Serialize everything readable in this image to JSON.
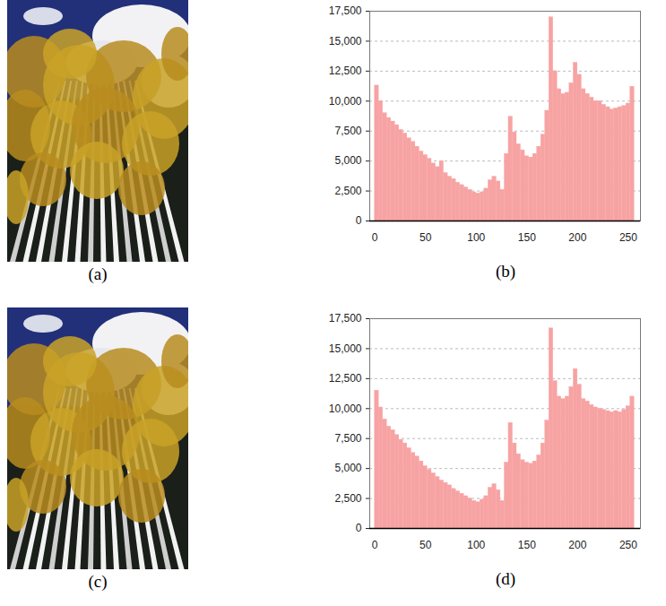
{
  "chart_data": [
    {
      "type": "histogram",
      "caption": "(b)",
      "color": "#f7a3a3",
      "grid": true,
      "bins": [
        0,
        4,
        8,
        12,
        16,
        20,
        24,
        28,
        32,
        36,
        40,
        44,
        48,
        52,
        56,
        60,
        64,
        68,
        72,
        76,
        80,
        84,
        88,
        92,
        96,
        100,
        104,
        108,
        112,
        116,
        120,
        124,
        128,
        132,
        136,
        140,
        144,
        148,
        152,
        156,
        160,
        164,
        168,
        172,
        176,
        180,
        184,
        188,
        192,
        196,
        200,
        204,
        208,
        212,
        216,
        220,
        224,
        228,
        232,
        236,
        240,
        244,
        248,
        252,
        256
      ],
      "counts": [
        11300,
        10000,
        9000,
        8600,
        8300,
        8000,
        7600,
        7300,
        6900,
        6600,
        6200,
        5800,
        5500,
        5200,
        4800,
        4500,
        5000,
        4000,
        3700,
        3500,
        3200,
        3000,
        2800,
        2600,
        2400,
        2300,
        2400,
        2700,
        3400,
        3700,
        3300,
        2600,
        5600,
        8700,
        7400,
        6400,
        5900,
        5400,
        5300,
        5600,
        6200,
        7200,
        9200,
        17000,
        12500,
        11000,
        10600,
        10700,
        11500,
        13200,
        12200,
        11000,
        10600,
        10300,
        10000,
        10000,
        9700,
        9500,
        9300,
        9400,
        9500,
        9600,
        9800,
        11200
      ],
      "xlim": [
        -5,
        262
      ],
      "xticks": [
        0,
        50,
        100,
        150,
        200,
        250
      ],
      "ylim": [
        0,
        17500
      ],
      "yticks": [
        0,
        {
          "value": 2500,
          "label": "2,500"
        },
        {
          "value": 5000,
          "label": "5,000"
        },
        {
          "value": 7500,
          "label": "7,500"
        },
        {
          "value": 10000,
          "label": "10,000"
        },
        {
          "value": 12500,
          "label": "12,500"
        },
        {
          "value": 15000,
          "label": "15,000"
        },
        {
          "value": 17500,
          "label": "17,500"
        }
      ]
    },
    {
      "type": "histogram",
      "caption": "(d)",
      "color": "#f7a3a3",
      "grid": true,
      "bins": [
        0,
        4,
        8,
        12,
        16,
        20,
        24,
        28,
        32,
        36,
        40,
        44,
        48,
        52,
        56,
        60,
        64,
        68,
        72,
        76,
        80,
        84,
        88,
        92,
        96,
        100,
        104,
        108,
        112,
        116,
        120,
        124,
        128,
        132,
        136,
        140,
        144,
        148,
        152,
        156,
        160,
        164,
        168,
        172,
        176,
        180,
        184,
        188,
        192,
        196,
        200,
        204,
        208,
        212,
        216,
        220,
        224,
        228,
        232,
        236,
        240,
        244,
        248,
        252,
        256
      ],
      "counts": [
        11500,
        10100,
        9100,
        8500,
        8200,
        7800,
        7400,
        7100,
        6700,
        6300,
        6000,
        5600,
        5200,
        4900,
        4600,
        4300,
        4000,
        3800,
        3600,
        3300,
        3100,
        2900,
        2700,
        2500,
        2300,
        2200,
        2400,
        2700,
        3400,
        3700,
        3200,
        2300,
        5500,
        8800,
        7100,
        6200,
        5700,
        5500,
        5400,
        5600,
        6100,
        7100,
        9000,
        16700,
        12300,
        11000,
        10800,
        11000,
        11800,
        13300,
        12000,
        10800,
        10600,
        10300,
        10100,
        10000,
        9900,
        9800,
        9700,
        9800,
        9700,
        9900,
        10200,
        11000
      ],
      "xlim": [
        -5,
        262
      ],
      "xticks": [
        0,
        50,
        100,
        150,
        200,
        250
      ],
      "ylim": [
        0,
        17500
      ],
      "yticks": [
        0,
        {
          "value": 2500,
          "label": "2,500"
        },
        {
          "value": 5000,
          "label": "5,000"
        },
        {
          "value": 7500,
          "label": "7,500"
        },
        {
          "value": 10000,
          "label": "10,000"
        },
        {
          "value": 12500,
          "label": "12,500"
        },
        {
          "value": 15000,
          "label": "15,000"
        },
        {
          "value": 17500,
          "label": "17,500"
        }
      ]
    }
  ],
  "images": [
    {
      "caption": "(a)"
    },
    {
      "caption": "(c)"
    }
  ]
}
